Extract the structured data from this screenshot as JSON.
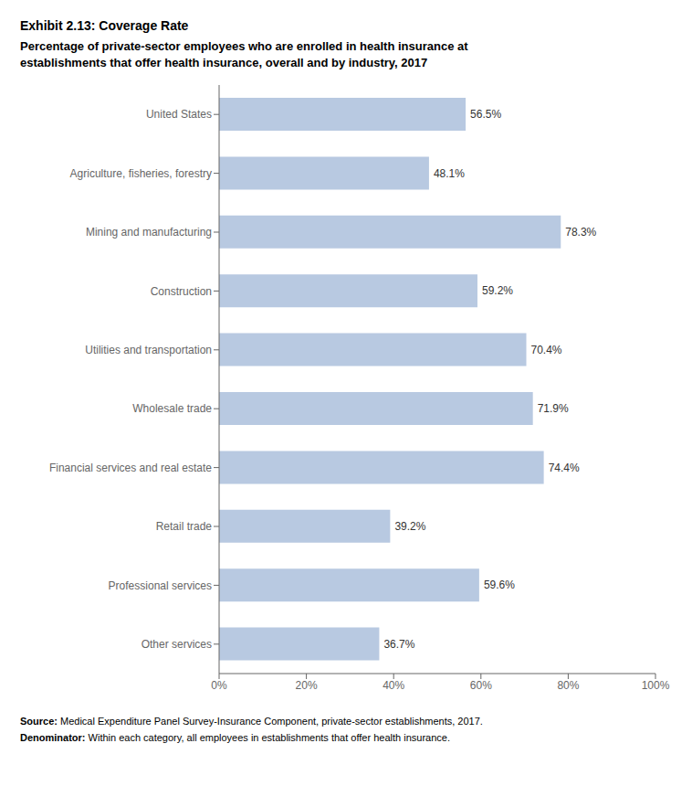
{
  "chart_data": {
    "type": "bar",
    "orientation": "horizontal",
    "title": "Exhibit 2.13: Coverage Rate",
    "subtitle": "Percentage of private-sector employees who are enrolled in health insurance at\nestablishments that offer health insurance, overall and by industry, 2017",
    "categories": [
      "United States",
      "Agriculture, fisheries, forestry",
      "Mining and manufacturing",
      "Construction",
      "Utilities and transportation",
      "Wholesale trade",
      "Financial services and real estate",
      "Retail trade",
      "Professional services",
      "Other services"
    ],
    "values": [
      56.5,
      48.1,
      78.3,
      59.2,
      70.4,
      71.9,
      74.4,
      39.2,
      59.6,
      36.7
    ],
    "value_labels": [
      "56.5%",
      "48.1%",
      "78.3%",
      "59.2%",
      "70.4%",
      "71.9%",
      "74.4%",
      "39.2%",
      "59.6%",
      "36.7%"
    ],
    "data_labels": true,
    "color": "#b8c9e1",
    "xlim": [
      0,
      100
    ],
    "xticks": [
      {
        "value": 0,
        "label": "0%"
      },
      {
        "value": 20,
        "label": "20%"
      },
      {
        "value": 40,
        "label": "40%"
      },
      {
        "value": 60,
        "label": "60%"
      },
      {
        "value": 80,
        "label": "80%"
      },
      {
        "value": 100,
        "label": "100%"
      }
    ],
    "grid": false,
    "annotations": [
      "Source: Medical Expenditure Panel Survey-Insurance Component, private-sector establishments, 2017.",
      "Denominator: Within each category, all employees in establishments that offer health insurance."
    ]
  }
}
